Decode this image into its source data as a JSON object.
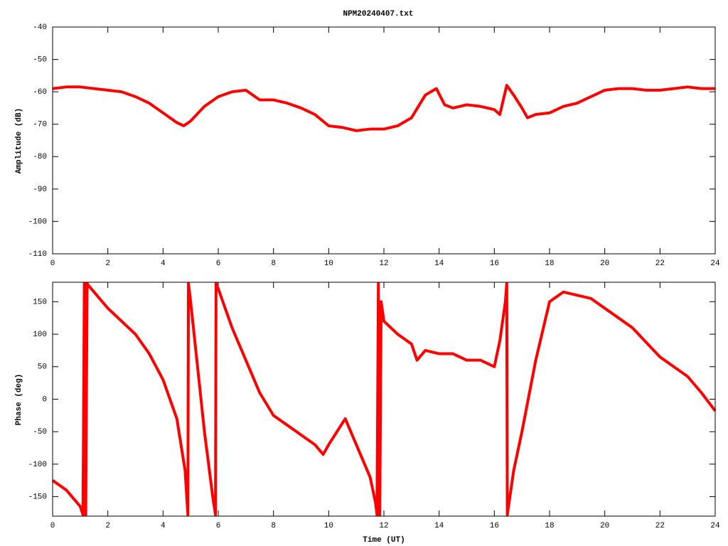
{
  "chart_data": [
    {
      "type": "line",
      "title": "NPM20240407.txt",
      "y_label": "Amplitude (dB)",
      "x": [
        0,
        0.5,
        1,
        1.5,
        2,
        2.5,
        3,
        3.5,
        4,
        4.5,
        4.75,
        5,
        5.5,
        6,
        6.5,
        7,
        7.5,
        8,
        8.5,
        9,
        9.5,
        10,
        10.5,
        11,
        11.5,
        12,
        12.5,
        13,
        13.5,
        13.9,
        14.2,
        14.5,
        15,
        15.5,
        16,
        16.2,
        16.45,
        16.7,
        17,
        17.2,
        17.5,
        18,
        18.5,
        19,
        19.5,
        20,
        20.5,
        21,
        21.5,
        22,
        22.5,
        23,
        23.5,
        24
      ],
      "series": [
        {
          "color": "#ff0000",
          "values": [
            -59,
            -58.5,
            -58.5,
            -59,
            -59.5,
            -60,
            -61.5,
            -63.5,
            -66.5,
            -69.5,
            -70.5,
            -69,
            -64.5,
            -61.5,
            -60,
            -59.5,
            -62.5,
            -62.5,
            -63.5,
            -65,
            -67,
            -70.5,
            -71,
            -72,
            -71.5,
            -71.5,
            -70.5,
            -68,
            -61,
            -59,
            -64,
            -65,
            -64,
            -64.5,
            -65.5,
            -67,
            -58,
            -61,
            -65,
            -68,
            -67,
            -66.5,
            -64.5,
            -63.5,
            -61.5,
            -59.5,
            -59,
            -59,
            -59.5,
            -59.5,
            -59,
            -58.5,
            -59,
            -59
          ]
        }
      ],
      "xlim": [
        0,
        24
      ],
      "xticks": [
        0,
        2,
        4,
        6,
        8,
        10,
        12,
        14,
        16,
        18,
        20,
        22,
        24
      ],
      "ylim": [
        -110,
        -40
      ],
      "yticks": [
        -110,
        -100,
        -90,
        -80,
        -70,
        -60,
        -50,
        -40
      ]
    },
    {
      "type": "line",
      "y_label": "Phase (deg)",
      "x_label": "Time (UT)",
      "x": [
        0,
        0.5,
        1,
        1.1,
        1.15,
        1.2,
        1.25,
        1.3,
        2,
        3,
        3.5,
        4,
        4.5,
        4.8,
        4.9,
        4.92,
        5,
        5.5,
        5.8,
        5.9,
        5.92,
        6,
        6.5,
        7,
        7.5,
        8,
        8.5,
        9,
        9.5,
        9.8,
        10,
        10.3,
        10.6,
        11,
        11.5,
        11.7,
        11.75,
        11.8,
        11.85,
        11.9,
        12,
        12.5,
        13,
        13.2,
        13.5,
        14,
        14.5,
        15,
        15.5,
        16,
        16.2,
        16.4,
        16.45,
        16.47,
        16.7,
        17,
        17.5,
        18,
        18.5,
        19,
        19.5,
        20,
        21,
        22,
        23,
        23.5,
        24
      ],
      "series": [
        {
          "color": "#ff0000",
          "values": [
            -125,
            -140,
            -165,
            -178,
            178,
            -178,
            178,
            175,
            140,
            100,
            70,
            30,
            -30,
            -110,
            -178,
            178,
            150,
            -50,
            -150,
            -178,
            178,
            170,
            110,
            60,
            10,
            -25,
            -40,
            -55,
            -70,
            -85,
            -70,
            -50,
            -30,
            -70,
            -120,
            -160,
            -178,
            178,
            -178,
            150,
            120,
            100,
            85,
            60,
            75,
            70,
            70,
            60,
            60,
            50,
            90,
            150,
            178,
            -178,
            -110,
            -50,
            60,
            150,
            165,
            160,
            155,
            140,
            110,
            65,
            35,
            10,
            -18
          ]
        }
      ],
      "xlim": [
        0,
        24
      ],
      "xticks": [
        0,
        2,
        4,
        6,
        8,
        10,
        12,
        14,
        16,
        18,
        20,
        22,
        24
      ],
      "ylim": [
        -180,
        180
      ],
      "yticks": [
        -150,
        -100,
        -50,
        0,
        50,
        100,
        150
      ]
    }
  ]
}
